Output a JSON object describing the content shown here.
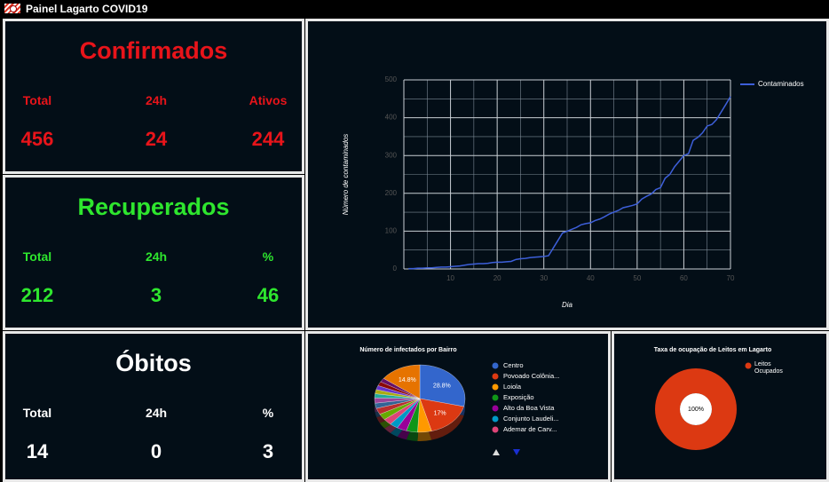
{
  "header": {
    "title": "Painel Lagarto COVID19"
  },
  "panels": [
    {
      "title": "Confirmados",
      "color": "#e8141a",
      "labels": [
        "Total",
        "24h",
        "Ativos"
      ],
      "values": [
        456,
        24,
        244
      ]
    },
    {
      "title": "Recuperados",
      "color": "#2ee62e",
      "labels": [
        "Total",
        "24h",
        "%"
      ],
      "values": [
        212,
        3,
        46
      ]
    },
    {
      "title": "Óbitos",
      "color": "#ffffff",
      "labels": [
        "Total",
        "24h",
        "%"
      ],
      "values": [
        14,
        0,
        3
      ]
    }
  ],
  "line_chart": {
    "type": "line",
    "y_label": "Número de contaminados",
    "x_label": "Dia",
    "x": [
      1,
      2,
      3,
      4,
      5,
      6,
      7,
      8,
      9,
      10,
      11,
      12,
      13,
      14,
      15,
      16,
      17,
      18,
      19,
      20,
      21,
      22,
      23,
      24,
      25,
      26,
      27,
      28,
      29,
      30,
      31,
      32,
      33,
      34,
      35,
      36,
      37,
      38,
      39,
      40,
      41,
      42,
      43,
      44,
      45,
      46,
      47,
      48,
      49,
      50,
      51,
      52,
      53,
      54,
      55,
      56,
      57,
      58,
      59,
      60,
      61,
      62,
      63,
      64,
      65,
      66,
      67,
      68,
      69,
      70
    ],
    "series": [
      {
        "name": "Contaminados",
        "color": "#3d5fd9",
        "values": [
          1,
          1,
          2,
          2,
          3,
          3,
          4,
          5,
          5,
          6,
          7,
          8,
          10,
          12,
          13,
          14,
          14,
          15,
          17,
          18,
          18,
          19,
          20,
          25,
          27,
          28,
          30,
          31,
          32,
          33,
          35,
          55,
          75,
          95,
          100,
          105,
          110,
          117,
          120,
          122,
          128,
          132,
          138,
          145,
          150,
          155,
          162,
          165,
          168,
          172,
          185,
          192,
          198,
          210,
          215,
          240,
          250,
          270,
          285,
          300,
          305,
          340,
          348,
          360,
          378,
          382,
          395,
          415,
          435,
          456
        ]
      }
    ],
    "xlim": [
      0,
      70
    ],
    "xticks": [
      10,
      20,
      30,
      40,
      50,
      60,
      70
    ],
    "ylim": [
      0,
      500
    ],
    "yticks": [
      0,
      100,
      200,
      300,
      400,
      500
    ],
    "grid": true
  },
  "pie_chart": {
    "type": "pie",
    "title": "Número de infectados por Bairro",
    "categories": [
      "Centro",
      "Povoado Colônia...",
      "Loiola",
      "Exposição",
      "Alto da Boa Vista",
      "Conjunto Laudeli...",
      "Ademar de Carv...",
      null,
      null,
      null,
      null,
      null,
      null,
      null,
      null,
      null,
      null
    ],
    "values": [
      28.8,
      17,
      5,
      4,
      3.5,
      3,
      3,
      3,
      3,
      2.5,
      2.5,
      2,
      2,
      2,
      2,
      1.9,
      14.8
    ],
    "value_labels": [
      "28.8%",
      "17%",
      null,
      null,
      null,
      null,
      null,
      null,
      null,
      null,
      null,
      null,
      null,
      null,
      null,
      null,
      "14.8%"
    ],
    "colors": [
      "#3366cc",
      "#dc3912",
      "#ff9900",
      "#109618",
      "#990099",
      "#0099c6",
      "#dd4477",
      "#66aa00",
      "#b82e2e",
      "#316395",
      "#994499",
      "#22aa99",
      "#aaaa11",
      "#6633cc",
      "#8b0707",
      "#651067",
      "#e67300"
    ]
  },
  "donut_chart": {
    "type": "pie",
    "title": "Taxa de ocupação de Leitos em Lagarto",
    "categories": [
      "Leitos Ocupados"
    ],
    "values": [
      100
    ],
    "value_labels": [
      "100%"
    ],
    "colors": [
      "#dc3912"
    ]
  }
}
